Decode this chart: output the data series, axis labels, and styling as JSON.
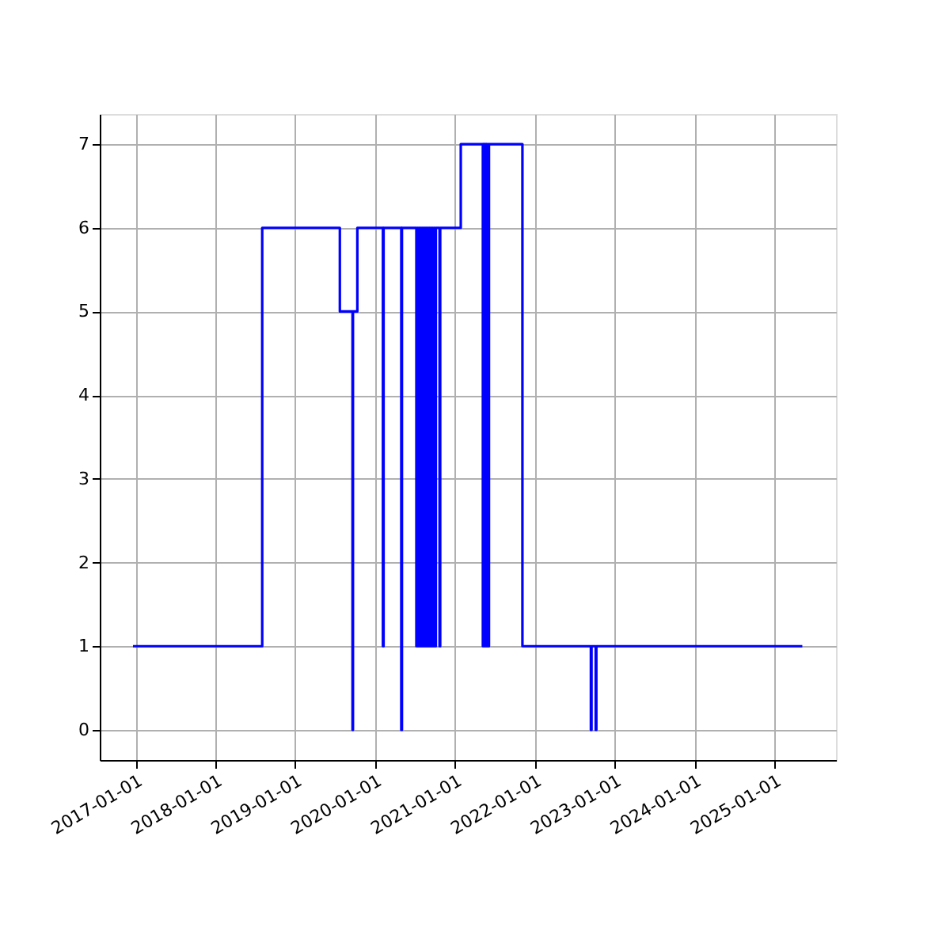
{
  "chart_data": {
    "type": "step",
    "x": [
      "2016-12-20",
      "2018-08-03",
      "2019-07-24",
      "2019-09-20",
      "2019-09-22",
      "2019-10-12",
      "2020-02-06",
      "2020-02-09",
      "2020-04-30",
      "2020-05-03",
      "2020-07-08",
      "2020-07-11",
      "2020-07-15",
      "2020-07-18",
      "2020-07-22",
      "2020-07-25",
      "2020-07-29",
      "2020-08-01",
      "2020-08-05",
      "2020-08-08",
      "2020-08-12",
      "2020-08-15",
      "2020-08-19",
      "2020-08-22",
      "2020-08-26",
      "2020-08-29",
      "2020-09-02",
      "2020-09-05",
      "2020-09-09",
      "2020-09-12",
      "2020-09-16",
      "2020-09-19",
      "2020-09-23",
      "2020-09-26",
      "2020-10-01",
      "2020-10-05",
      "2020-10-22",
      "2020-10-25",
      "2021-01-27",
      "2021-05-08",
      "2021-05-11",
      "2021-05-15",
      "2021-05-18",
      "2021-05-22",
      "2021-05-25",
      "2021-06-01",
      "2021-06-05",
      "2021-11-05",
      "2022-09-14",
      "2022-09-17",
      "2022-10-06",
      "2022-10-09",
      "2025-05-08"
    ],
    "series": [
      {
        "color": "#0000ff",
        "values": [
          1,
          6,
          5,
          0,
          5,
          6,
          1,
          6,
          0,
          6,
          1,
          6,
          1,
          6,
          1,
          6,
          1,
          6,
          1,
          6,
          1,
          6,
          1,
          6,
          1,
          6,
          1,
          6,
          1,
          6,
          1,
          6,
          1,
          6,
          1,
          6,
          1,
          6,
          7,
          1,
          7,
          1,
          7,
          1,
          7,
          1,
          7,
          1,
          0,
          1,
          0,
          1,
          1
        ]
      }
    ],
    "xlim": [
      "2016-07-21",
      "2025-10-09"
    ],
    "ylim": [
      -0.36,
      7.36
    ],
    "xticks": [
      "2017-01-01",
      "2018-01-01",
      "2019-01-01",
      "2020-01-01",
      "2021-01-01",
      "2022-01-01",
      "2023-01-01",
      "2024-01-01",
      "2025-01-01"
    ],
    "yticks": [
      0,
      1,
      2,
      3,
      4,
      5,
      6,
      7
    ],
    "grid": true,
    "marker": "none",
    "line_style": "solid"
  }
}
